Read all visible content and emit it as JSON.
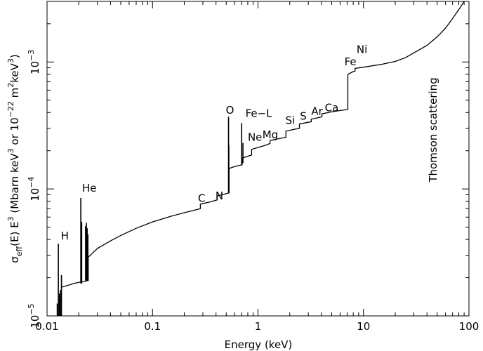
{
  "chart_data": {
    "type": "line",
    "xscale": "log",
    "yscale": "log",
    "xlim": [
      0.01,
      100
    ],
    "ylim": [
      1e-05,
      0.003
    ],
    "grid": false,
    "legend": "none",
    "xlabel": "Energy (keV)",
    "ylabel": {
      "sigma": "σ",
      "sub": "eff",
      "mid": "(E)  E",
      "sup1": "3",
      "text2": "  (Mbarn keV",
      "sup2": "3",
      "text3": " or 10",
      "sup3": "−22",
      "text4": " m",
      "sup4": "2",
      "text5": "keV",
      "sup5": "3",
      "text6": ")"
    },
    "x_ticks": [
      {
        "value": 0.01,
        "label": "0.01"
      },
      {
        "value": 0.1,
        "label": "0.1"
      },
      {
        "value": 1,
        "label": "1"
      },
      {
        "value": 10,
        "label": "10"
      },
      {
        "value": 100,
        "label": "100"
      }
    ],
    "y_ticks": [
      {
        "value": 1e-05,
        "base": "10",
        "exp": "−5"
      },
      {
        "value": 0.0001,
        "base": "10",
        "exp": "−4"
      },
      {
        "value": 0.001,
        "base": "10",
        "exp": "−3"
      }
    ],
    "series": [
      {
        "color": "#000000",
        "points": [
          [
            0.0136,
            1.68e-05
          ],
          [
            0.0155,
            1.73e-05
          ],
          [
            0.018,
            1.8e-05
          ],
          [
            0.0215,
            1.86e-05
          ],
          [
            0.0246,
            1.9e-05
          ],
          [
            0.0246,
            2.9e-05
          ],
          [
            0.03,
            3.4e-05
          ],
          [
            0.04,
            3.9e-05
          ],
          [
            0.05,
            4.3e-05
          ],
          [
            0.07,
            4.9e-05
          ],
          [
            0.1,
            5.5e-05
          ],
          [
            0.15,
            6.1e-05
          ],
          [
            0.2,
            6.5e-05
          ],
          [
            0.284,
            7e-05
          ],
          [
            0.284,
            7.6e-05
          ],
          [
            0.35,
            7.9e-05
          ],
          [
            0.41,
            8.2e-05
          ],
          [
            0.41,
            8.8e-05
          ],
          [
            0.532,
            9.3e-05
          ],
          [
            0.532,
            0.000145
          ],
          [
            0.6,
            0.00015
          ],
          [
            0.707,
            0.000155
          ],
          [
            0.707,
            0.000175
          ],
          [
            0.87,
            0.000185
          ],
          [
            0.87,
            0.000205
          ],
          [
            1.0,
            0.000212
          ],
          [
            1.2,
            0.000222
          ],
          [
            1.3,
            0.000228
          ],
          [
            1.3,
            0.00024
          ],
          [
            1.5,
            0.000247
          ],
          [
            1.84,
            0.000255
          ],
          [
            1.84,
            0.000285
          ],
          [
            2.2,
            0.000295
          ],
          [
            2.47,
            0.0003
          ],
          [
            2.47,
            0.000325
          ],
          [
            3.0,
            0.000335
          ],
          [
            3.2,
            0.000338
          ],
          [
            3.2,
            0.000355
          ],
          [
            3.6,
            0.000362
          ],
          [
            4.04,
            0.00037
          ],
          [
            4.04,
            0.00039
          ],
          [
            5.0,
            0.000405
          ],
          [
            6.0,
            0.000415
          ],
          [
            7.11,
            0.000422
          ],
          [
            7.11,
            0.0008
          ],
          [
            8.0,
            0.00084
          ],
          [
            8.33,
            0.00085
          ],
          [
            8.33,
            0.00089
          ],
          [
            10,
            0.00091
          ],
          [
            15,
            0.00096
          ],
          [
            20,
            0.00101
          ],
          [
            25,
            0.00108
          ],
          [
            30,
            0.00118
          ],
          [
            40,
            0.00135
          ],
          [
            50,
            0.00158
          ],
          [
            60,
            0.00185
          ],
          [
            70,
            0.0022
          ],
          [
            80,
            0.00258
          ],
          [
            90,
            0.003
          ]
        ]
      }
    ],
    "spikes": [
      {
        "x": 0.0125,
        "y0": 1e-05,
        "y1": 1.25e-05
      },
      {
        "x": 0.0128,
        "y0": 1e-05,
        "y1": 3.7e-05
      },
      {
        "x": 0.0131,
        "y0": 1e-05,
        "y1": 1.5e-05
      },
      {
        "x": 0.0134,
        "y0": 1e-05,
        "y1": 1.6e-05
      },
      {
        "x": 0.0137,
        "y0": 1e-05,
        "y1": 2.1e-05
      },
      {
        "x": 0.0209,
        "y0": 1.8e-05,
        "y1": 8.5e-05
      },
      {
        "x": 0.0213,
        "y0": 1.8e-05,
        "y1": 5.5e-05
      },
      {
        "x": 0.0232,
        "y0": 1.9e-05,
        "y1": 5.1e-05
      },
      {
        "x": 0.0236,
        "y0": 1.9e-05,
        "y1": 5.4e-05
      },
      {
        "x": 0.024,
        "y0": 1.9e-05,
        "y1": 4.9e-05
      },
      {
        "x": 0.0244,
        "y0": 1.9e-05,
        "y1": 4.4e-05
      },
      {
        "x": 0.5255,
        "y0": 9.3e-05,
        "y1": 0.00037
      },
      {
        "x": 0.529,
        "y0": 9.3e-05,
        "y1": 0.00022
      },
      {
        "x": 0.7,
        "y0": 0.000155,
        "y1": 0.00033
      },
      {
        "x": 0.72,
        "y0": 0.00016,
        "y1": 0.00023
      }
    ],
    "annotations": [
      {
        "text": "H",
        "x": 0.0135,
        "y": 4e-05
      },
      {
        "text": "He",
        "x": 0.0215,
        "y": 9.5e-05
      },
      {
        "text": "C",
        "x": 0.27,
        "y": 7.9e-05
      },
      {
        "text": "N",
        "x": 0.395,
        "y": 8.3e-05
      },
      {
        "text": "O",
        "x": 0.495,
        "y": 0.00039
      },
      {
        "text": "Fe−L",
        "x": 0.76,
        "y": 0.00037
      },
      {
        "text": "Ne",
        "x": 0.8,
        "y": 0.00024
      },
      {
        "text": "Mg",
        "x": 1.1,
        "y": 0.00025
      },
      {
        "text": "Si",
        "x": 1.82,
        "y": 0.000325
      },
      {
        "text": "S",
        "x": 2.5,
        "y": 0.00035
      },
      {
        "text": "Ar",
        "x": 3.2,
        "y": 0.000385
      },
      {
        "text": "Ca",
        "x": 4.3,
        "y": 0.00041
      },
      {
        "text": "Fe",
        "x": 6.6,
        "y": 0.00094
      },
      {
        "text": "Ni",
        "x": 8.6,
        "y": 0.00118
      }
    ],
    "side_label": "Thomson scattering"
  }
}
